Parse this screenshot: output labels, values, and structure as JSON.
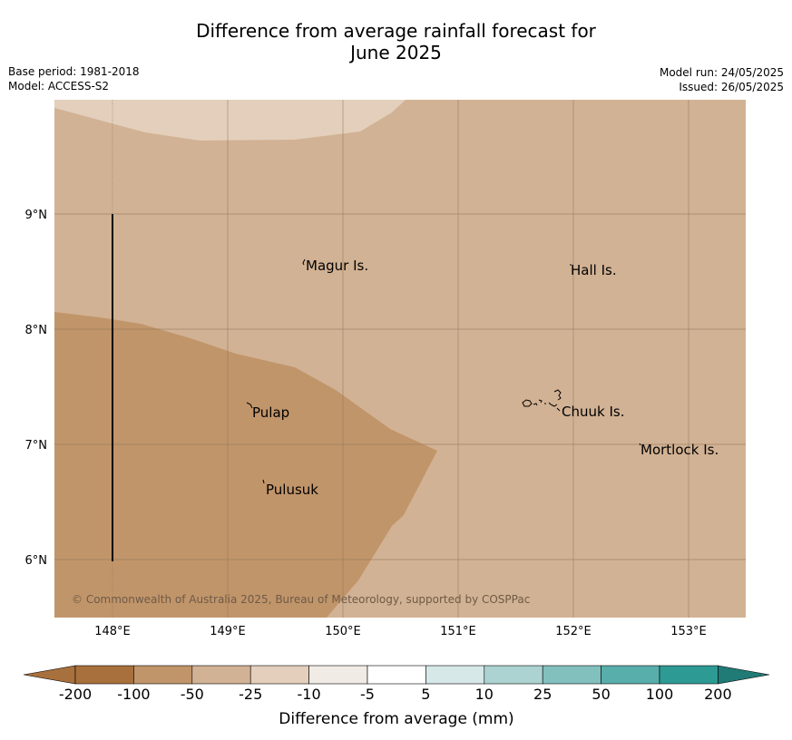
{
  "title_line1": "Difference from average rainfall forecast for",
  "title_line2": "June 2025",
  "meta": {
    "base_period": "Base period: 1981-2018",
    "model": "Model: ACCESS-S2",
    "model_run": "Model run: 24/05/2025",
    "issued": "Issued: 26/05/2025"
  },
  "map": {
    "lat_labels": [
      "9°N",
      "8°N",
      "7°N",
      "6°N"
    ],
    "lon_labels": [
      "148°E",
      "149°E",
      "150°E",
      "151°E",
      "152°E",
      "153°E"
    ],
    "places": [
      "Magur Is.",
      "Hall Is.",
      "Pulap",
      "Chuuk Is.",
      "Mortlock Is.",
      "Pulusuk"
    ],
    "copyright": "© Commonwealth of Australia 2025, Bureau of Meteorology, supported by COSPPac",
    "fill_colors": {
      "light": "#e3cfbc",
      "medium": "#d2b294",
      "dark": "#c1956a"
    }
  },
  "legend": {
    "tick_labels": [
      "-200",
      "-100",
      "-50",
      "-25",
      "-10",
      "-5",
      "5",
      "10",
      "25",
      "50",
      "100",
      "200"
    ],
    "colors": [
      "#a8703c",
      "#a8703c",
      "#c1956a",
      "#d2b294",
      "#e3cfbc",
      "#f0ebe4",
      "#ffffff",
      "#d6e8e7",
      "#acd3d1",
      "#82c0be",
      "#58aeaa",
      "#2e9a94",
      "#207a75"
    ],
    "axis_title": "Difference from average (mm)"
  }
}
